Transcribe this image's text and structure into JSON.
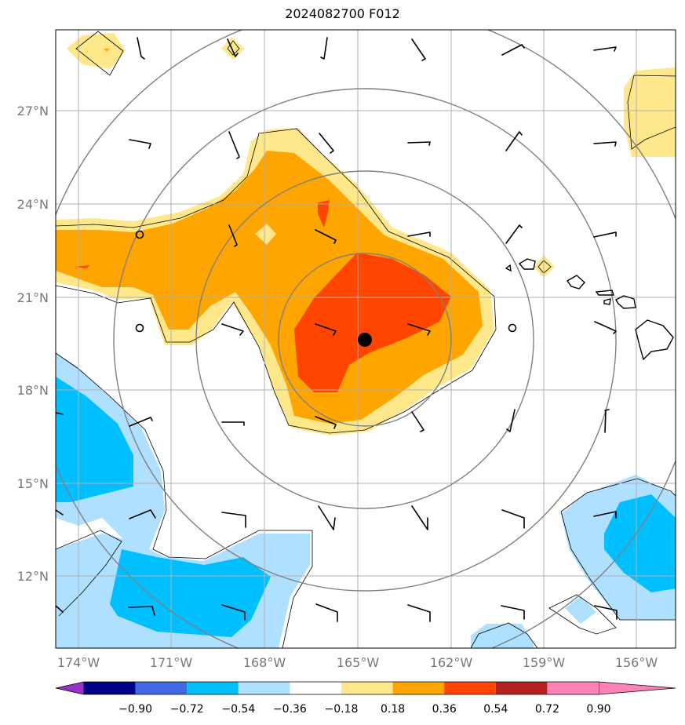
{
  "title": "2024082700 F012",
  "lat_labels": [
    "27°N",
    "24°N",
    "21°N",
    "18°N",
    "15°N",
    "12°N"
  ],
  "lon_labels": [
    "174°W",
    "171°W",
    "168°W",
    "165°W",
    "162°W",
    "159°W",
    "156°W"
  ],
  "colorbar": {
    "ticks": [
      "−0.90",
      "−0.72",
      "−0.54",
      "−0.36",
      "−0.18",
      "0.18",
      "0.36",
      "0.54",
      "0.72",
      "0.90"
    ],
    "colors": [
      "#9932cc",
      "#00008b",
      "#4169e1",
      "#00bfff",
      "#b0e0ff",
      "#ffffff",
      "#ffe88c",
      "#ffa500",
      "#ff4500",
      "#b22222",
      "#ff82b4"
    ]
  },
  "colors": {
    "positive_low": "#ffe88c",
    "positive_mid": "#ffa500",
    "positive_high": "#ff4500",
    "negative_low": "#b0e0ff",
    "negative_mid": "#00bfff",
    "gridline": "#b0b0b0",
    "range_ring": "#808080"
  },
  "storm_center": {
    "lon": -164.7,
    "lat": 19.6
  }
}
